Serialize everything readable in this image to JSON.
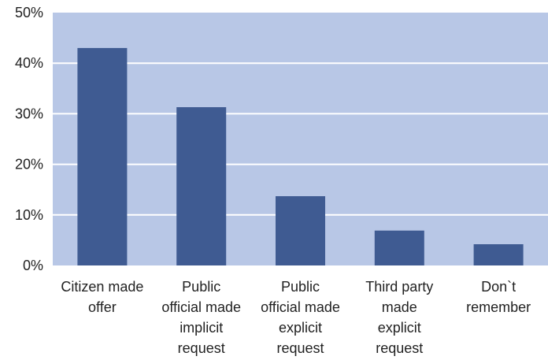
{
  "chart_data": {
    "type": "bar",
    "categories": [
      [
        "Citizen made",
        "offer"
      ],
      [
        "Public",
        "official made",
        "implicit",
        "request"
      ],
      [
        "Public",
        "official made",
        "explicit",
        "request"
      ],
      [
        "Third party",
        "made",
        "explicit",
        "request"
      ],
      [
        "Don`t",
        "remember"
      ]
    ],
    "values": [
      43,
      31.3,
      13.7,
      6.9,
      4.2
    ],
    "ylim": [
      0,
      50
    ],
    "yticks": [
      0,
      10,
      20,
      30,
      40,
      50
    ],
    "ytick_labels": [
      "0%",
      "10%",
      "20%",
      "30%",
      "40%",
      "50%"
    ],
    "grid": true,
    "colors": {
      "plot_bg": "#b8c7e6",
      "bar": "#3f5b92",
      "grid": "#ffffff",
      "text": "#222222"
    }
  }
}
